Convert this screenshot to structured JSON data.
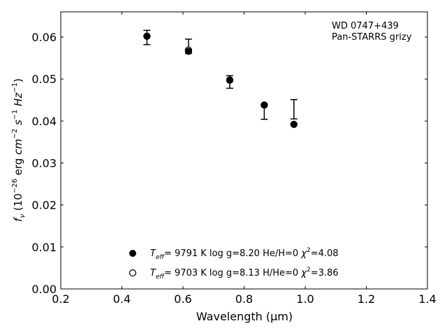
{
  "chart_data": {
    "type": "scatter",
    "xlabel": "Wavelength (μm)",
    "ylabel_parts": [
      "f",
      "ν",
      " (10",
      "−26",
      " erg ",
      "cm",
      "−2",
      " ",
      "s",
      "−1",
      " ",
      "Hz",
      "−1",
      ")"
    ],
    "xlim": [
      0.2,
      1.4
    ],
    "ylim": [
      0.0,
      0.066
    ],
    "x_ticks": [
      0.2,
      0.4,
      0.6,
      0.8,
      1.0,
      1.2,
      1.4
    ],
    "x_tick_labels": [
      "0.2",
      "0.4",
      "0.6",
      "0.8",
      "1.0",
      "1.2",
      "1.4"
    ],
    "y_ticks": [
      0.0,
      0.01,
      0.02,
      0.03,
      0.04,
      0.05,
      0.06
    ],
    "y_tick_labels": [
      "0.00",
      "0.01",
      "0.02",
      "0.03",
      "0.04",
      "0.05",
      "0.06"
    ],
    "annotation_lines": [
      "WD 0747+439",
      "Pan-STARRS grizy"
    ],
    "observed": [
      {
        "x": 0.482,
        "y": 0.0599,
        "err": 0.0017
      },
      {
        "x": 0.618,
        "y": 0.0578,
        "err": 0.0017
      },
      {
        "x": 0.753,
        "y": 0.0493,
        "err": 0.0015
      },
      {
        "x": 0.866,
        "y": 0.0422,
        "err": 0.0018
      },
      {
        "x": 0.963,
        "y": 0.0428,
        "err": 0.0023
      }
    ],
    "series": [
      {
        "marker": "filled",
        "label_parts": [
          "T",
          "eff",
          "=  9791 K  log g=8.20  He/H=0  ",
          "χ",
          "2",
          "=4.08"
        ],
        "points": [
          {
            "x": 0.482,
            "y": 0.0602
          },
          {
            "x": 0.618,
            "y": 0.0566
          },
          {
            "x": 0.753,
            "y": 0.0498
          },
          {
            "x": 0.866,
            "y": 0.0438
          },
          {
            "x": 0.963,
            "y": 0.0392
          }
        ]
      },
      {
        "marker": "open",
        "label_parts": [
          "T",
          "eff",
          "=  9703 K  log g=8.13  H/He=0  ",
          "χ",
          "2",
          "=3.86"
        ],
        "points": [
          {
            "x": 0.482,
            "y": 0.0602
          },
          {
            "x": 0.618,
            "y": 0.0569
          },
          {
            "x": 0.753,
            "y": 0.0497
          },
          {
            "x": 0.866,
            "y": 0.0438
          },
          {
            "x": 0.963,
            "y": 0.0392
          }
        ]
      }
    ]
  }
}
